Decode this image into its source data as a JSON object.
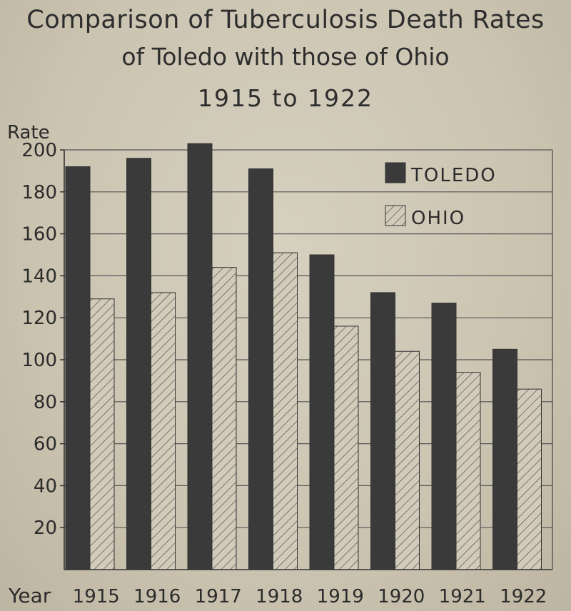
{
  "chart_data": {
    "type": "bar",
    "title_lines": [
      "Comparison of Tuberculosis Death Rates",
      "of Toledo with those of Ohio",
      "1915 to 1922"
    ],
    "ylabel": "Rate",
    "xlabel": "Year",
    "ylim": [
      0,
      200
    ],
    "yticks": [
      20,
      40,
      60,
      80,
      100,
      120,
      140,
      160,
      180,
      200
    ],
    "categories": [
      "1915",
      "1916",
      "1917",
      "1918",
      "1919",
      "1920",
      "1921",
      "1922"
    ],
    "series": [
      {
        "name": "TOLEDO",
        "values": [
          192,
          196,
          203,
          191,
          150,
          132,
          127,
          105
        ],
        "color": "#3a3a3a",
        "fill": "solid"
      },
      {
        "name": "OHIO",
        "values": [
          129,
          132,
          144,
          151,
          116,
          104,
          94,
          86
        ],
        "color": "#d2cbb9",
        "fill": "hatched"
      }
    ],
    "grid": true,
    "legend_position": "top-right"
  }
}
